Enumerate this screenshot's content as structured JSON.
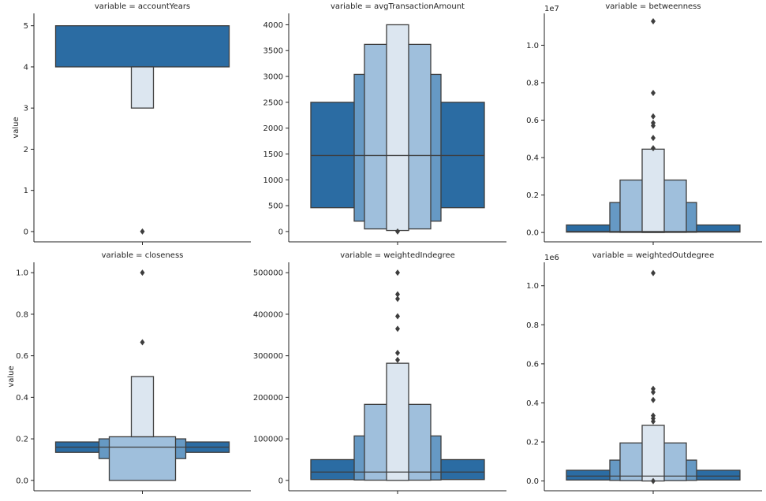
{
  "figure": {
    "ylabel": "value"
  },
  "colors": {
    "level0": "#2b6ca3",
    "level1": "#6699c4",
    "level2": "#9fbfdc",
    "level3": "#dce6f0",
    "edge": "#3d3d3d",
    "outlier": "#3d3d3d"
  },
  "chart_data": [
    {
      "type": "boxen",
      "title": "variable = accountYears",
      "ylabel": "value",
      "ylim": [
        -0.25,
        5.3
      ],
      "yticks": [
        0,
        1,
        2,
        3,
        4,
        5
      ],
      "ytick_labels": [
        "0",
        "1",
        "2",
        "3",
        "4",
        "5"
      ],
      "offset_label": "",
      "median": null,
      "boxes": [
        {
          "lo": 4,
          "hi": 5,
          "level": 0
        },
        {
          "lo": 3,
          "hi": 4,
          "level": 3
        }
      ],
      "outliers": [
        0
      ]
    },
    {
      "type": "boxen",
      "title": "variable = avgTransactionAmount",
      "ylabel": "",
      "ylim": [
        -200,
        4220
      ],
      "yticks": [
        0,
        500,
        1000,
        1500,
        2000,
        2500,
        3000,
        3500,
        4000
      ],
      "ytick_labels": [
        "0",
        "500",
        "1000",
        "1500",
        "2000",
        "2500",
        "3000",
        "3500",
        "4000"
      ],
      "offset_label": "",
      "median": 1470,
      "boxes": [
        {
          "lo": 460,
          "hi": 2500,
          "level": 0
        },
        {
          "lo": 200,
          "hi": 3040,
          "level": 1
        },
        {
          "lo": 50,
          "hi": 3620,
          "level": 2
        },
        {
          "lo": 20,
          "hi": 4000,
          "level": 3
        }
      ],
      "outliers": [
        0
      ]
    },
    {
      "type": "boxen",
      "title": "variable = betweenness",
      "ylabel": "",
      "ylim": [
        -0.05,
        1.17
      ],
      "yticks": [
        0,
        0.2,
        0.4,
        0.6,
        0.8,
        1.0
      ],
      "ytick_labels": [
        "0.0",
        "0.2",
        "0.4",
        "0.6",
        "0.8",
        "1.0"
      ],
      "offset_label": "1e7",
      "median": 0.005,
      "boxes": [
        {
          "lo": 0.002,
          "hi": 0.04,
          "level": 0
        },
        {
          "lo": 0.001,
          "hi": 0.16,
          "level": 1
        },
        {
          "lo": 0.0005,
          "hi": 0.28,
          "level": 2
        },
        {
          "lo": 0.0,
          "hi": 0.445,
          "level": 3
        }
      ],
      "outliers": [
        1.128,
        0.745,
        0.62,
        0.585,
        0.57,
        0.505,
        0.45
      ]
    },
    {
      "type": "boxen",
      "title": "variable = closeness",
      "ylabel": "value",
      "ylim": [
        -0.05,
        1.05
      ],
      "yticks": [
        0,
        0.2,
        0.4,
        0.6,
        0.8,
        1.0
      ],
      "ytick_labels": [
        "0.0",
        "0.2",
        "0.4",
        "0.6",
        "0.8",
        "1.0"
      ],
      "offset_label": "",
      "median": 0.16,
      "boxes": [
        {
          "lo": 0.135,
          "hi": 0.185,
          "level": 0
        },
        {
          "lo": 0.105,
          "hi": 0.2,
          "level": 1
        },
        {
          "lo": 0.0,
          "hi": 0.21,
          "level": 2
        },
        {
          "lo": 0.21,
          "hi": 0.5,
          "level": 3
        }
      ],
      "outliers": [
        1.0,
        0.665
      ]
    },
    {
      "type": "boxen",
      "title": "variable = weightedIndegree",
      "ylabel": "",
      "ylim": [
        -25000,
        525000
      ],
      "yticks": [
        0,
        100000,
        200000,
        300000,
        400000,
        500000
      ],
      "ytick_labels": [
        "0",
        "100000",
        "200000",
        "300000",
        "400000",
        "500000"
      ],
      "offset_label": "",
      "median": 20000,
      "boxes": [
        {
          "lo": 2000,
          "hi": 50000,
          "level": 0
        },
        {
          "lo": 1000,
          "hi": 107000,
          "level": 1
        },
        {
          "lo": 500,
          "hi": 183000,
          "level": 2
        },
        {
          "lo": 0,
          "hi": 282000,
          "level": 3
        }
      ],
      "outliers": [
        500000,
        448000,
        437000,
        395000,
        365000,
        307000,
        290000
      ]
    },
    {
      "type": "boxen",
      "title": "variable = weightedOutdegree",
      "ylabel": "",
      "ylim": [
        -0.05,
        1.12
      ],
      "yticks": [
        0,
        0.2,
        0.4,
        0.6,
        0.8,
        1.0
      ],
      "ytick_labels": [
        "0.0",
        "0.2",
        "0.4",
        "0.6",
        "0.8",
        "1.0"
      ],
      "offset_label": "1e6",
      "median": 0.025,
      "boxes": [
        {
          "lo": 0.005,
          "hi": 0.055,
          "level": 0
        },
        {
          "lo": 0.003,
          "hi": 0.107,
          "level": 1
        },
        {
          "lo": 0.002,
          "hi": 0.195,
          "level": 2
        },
        {
          "lo": 0.0,
          "hi": 0.285,
          "level": 3
        }
      ],
      "outliers": [
        1.065,
        0.472,
        0.455,
        0.415,
        0.335,
        0.32,
        0.305,
        0.0
      ]
    }
  ]
}
